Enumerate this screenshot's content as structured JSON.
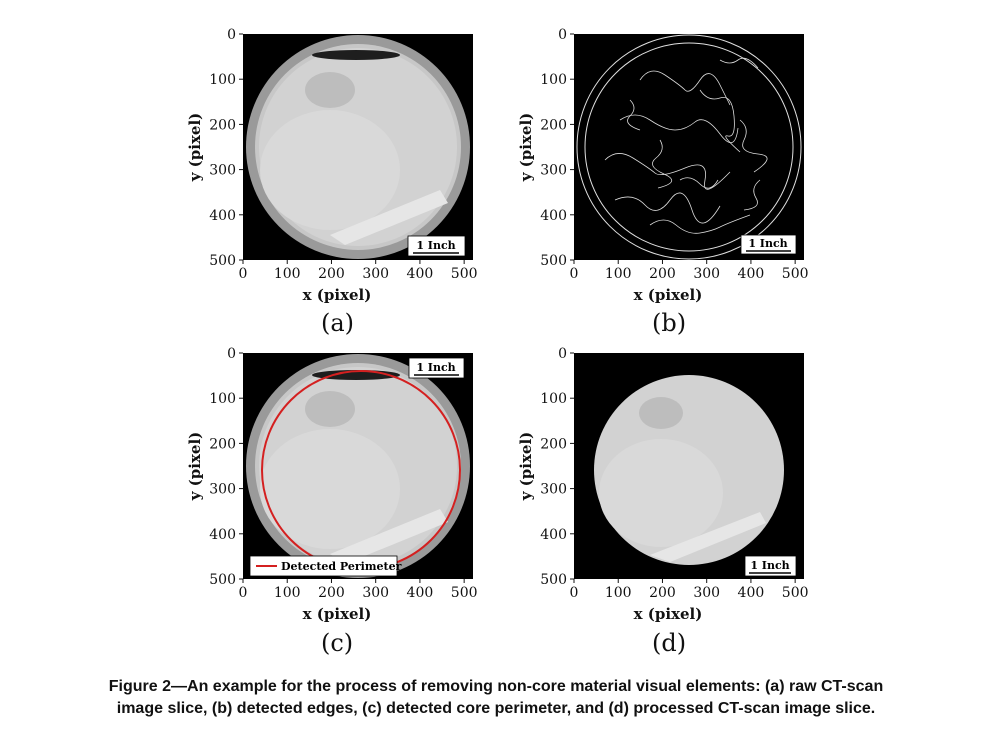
{
  "panels": [
    {
      "id": "a",
      "label": "(a)",
      "xlabel": "x (pixel)",
      "ylabel": "y (pixel)",
      "scale_bar": "1 Inch",
      "scale_position": "bottom-right",
      "image": "raw CT-scan slice"
    },
    {
      "id": "b",
      "label": "(b)",
      "xlabel": "x (pixel)",
      "ylabel": "y (pixel)",
      "scale_bar": "1 Inch",
      "scale_position": "bottom-right",
      "image": "detected edges"
    },
    {
      "id": "c",
      "label": "(c)",
      "xlabel": "x (pixel)",
      "ylabel": "y (pixel)",
      "scale_bar": "1 Inch",
      "scale_position": "top-right",
      "legend": "Detected Perimeter",
      "legend_color": "#d42020",
      "image": "raw CT-scan slice with perimeter"
    },
    {
      "id": "d",
      "label": "(d)",
      "xlabel": "x (pixel)",
      "ylabel": "y (pixel)",
      "scale_bar": "1 Inch",
      "scale_position": "bottom-right",
      "image": "processed CT-scan slice"
    }
  ],
  "axes": {
    "xticks": [
      "0",
      "100",
      "200",
      "300",
      "400",
      "500"
    ],
    "yticks": [
      "0",
      "100",
      "200",
      "300",
      "400",
      "500"
    ],
    "xlim": [
      0,
      520
    ],
    "ylim": [
      0,
      500
    ]
  },
  "caption": {
    "line1": "Figure 2—An example for the process of removing non-core material visual elements: (a) raw CT-scan",
    "line2": "image slice, (b) detected edges, (c) detected core perimeter, and (d) processed CT-scan image slice."
  }
}
